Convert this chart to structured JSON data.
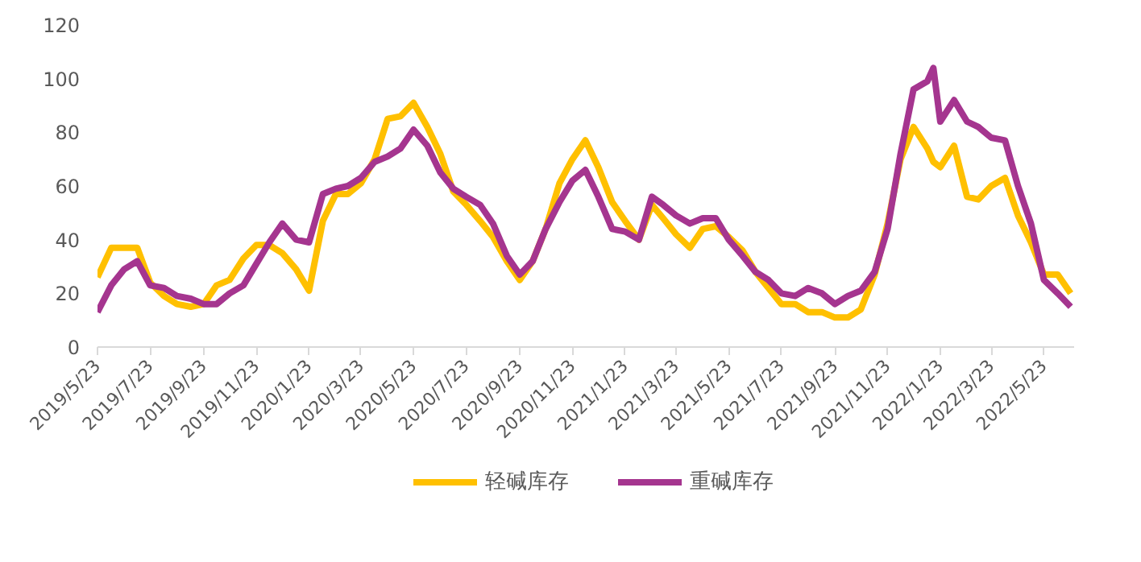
{
  "chart_data": {
    "type": "line",
    "x": [
      "2019-05-23",
      "2019-06-08",
      "2019-06-23",
      "2019-07-08",
      "2019-07-23",
      "2019-08-08",
      "2019-08-23",
      "2019-09-08",
      "2019-09-23",
      "2019-10-08",
      "2019-10-23",
      "2019-11-08",
      "2019-11-23",
      "2019-12-08",
      "2019-12-23",
      "2020-01-08",
      "2020-01-23",
      "2020-02-08",
      "2020-02-23",
      "2020-03-08",
      "2020-03-23",
      "2020-04-08",
      "2020-04-23",
      "2020-05-08",
      "2020-05-23",
      "2020-06-08",
      "2020-06-23",
      "2020-07-08",
      "2020-07-23",
      "2020-08-08",
      "2020-08-23",
      "2020-09-08",
      "2020-09-23",
      "2020-10-08",
      "2020-10-23",
      "2020-11-08",
      "2020-11-23",
      "2020-12-08",
      "2020-12-23",
      "2021-01-08",
      "2021-01-23",
      "2021-02-08",
      "2021-02-23",
      "2021-03-08",
      "2021-03-23",
      "2021-04-08",
      "2021-04-23",
      "2021-05-08",
      "2021-05-23",
      "2021-06-08",
      "2021-06-23",
      "2021-07-08",
      "2021-07-23",
      "2021-08-08",
      "2021-08-23",
      "2021-09-08",
      "2021-09-23",
      "2021-10-08",
      "2021-10-23",
      "2021-11-08",
      "2021-11-23",
      "2021-12-08",
      "2021-12-23",
      "2022-01-08",
      "2022-01-15",
      "2022-01-23",
      "2022-02-08",
      "2022-02-23",
      "2022-03-08",
      "2022-03-23",
      "2022-04-08",
      "2022-04-23",
      "2022-05-08",
      "2022-05-23",
      "2022-06-08",
      "2022-06-23"
    ],
    "series": [
      {
        "name": "轻碱库存",
        "color": "#ffc000",
        "values": [
          26,
          37,
          37,
          37,
          24,
          19,
          16,
          15,
          16,
          23,
          25,
          33,
          38,
          38,
          35,
          29,
          21,
          47,
          57,
          57,
          61,
          70,
          85,
          86,
          91,
          82,
          72,
          58,
          53,
          47,
          41,
          32,
          25,
          32,
          44,
          61,
          70,
          77,
          67,
          54,
          47,
          40,
          53,
          48,
          42,
          37,
          44,
          45,
          41,
          36,
          28,
          22,
          16,
          16,
          13,
          13,
          11,
          11,
          14,
          27,
          46,
          70,
          82,
          74,
          69,
          67,
          75,
          56,
          55,
          60,
          63,
          49,
          39,
          27,
          27,
          20
        ]
      },
      {
        "name": "重碱库存",
        "color": "#a5358f",
        "values": [
          13,
          23,
          29,
          32,
          23,
          22,
          19,
          18,
          16,
          16,
          20,
          23,
          31,
          39,
          46,
          40,
          39,
          57,
          59,
          60,
          63,
          69,
          71,
          74,
          81,
          75,
          65,
          59,
          56,
          53,
          46,
          34,
          27,
          32,
          44,
          54,
          62,
          66,
          56,
          44,
          43,
          40,
          56,
          53,
          49,
          46,
          48,
          48,
          40,
          34,
          28,
          25,
          20,
          19,
          22,
          20,
          16,
          19,
          21,
          28,
          44,
          72,
          96,
          99,
          104,
          84,
          92,
          84,
          82,
          78,
          77,
          60,
          46,
          25,
          20,
          15
        ]
      }
    ],
    "xlim": [
      "2019-05-23",
      "2022-06-27"
    ],
    "xticks": [
      {
        "value": "2019-05-23",
        "label": "2019/5/23"
      },
      {
        "value": "2019-07-23",
        "label": "2019/7/23"
      },
      {
        "value": "2019-09-23",
        "label": "2019/9/23"
      },
      {
        "value": "2019-11-23",
        "label": "2019/11/23"
      },
      {
        "value": "2020-01-23",
        "label": "2020/1/23"
      },
      {
        "value": "2020-03-23",
        "label": "2020/3/23"
      },
      {
        "value": "2020-05-23",
        "label": "2020/5/23"
      },
      {
        "value": "2020-07-23",
        "label": "2020/7/23"
      },
      {
        "value": "2020-09-23",
        "label": "2020/9/23"
      },
      {
        "value": "2020-11-23",
        "label": "2020/11/23"
      },
      {
        "value": "2021-01-23",
        "label": "2021/1/23"
      },
      {
        "value": "2021-03-23",
        "label": "2021/3/23"
      },
      {
        "value": "2021-05-23",
        "label": "2021/5/23"
      },
      {
        "value": "2021-07-23",
        "label": "2021/7/23"
      },
      {
        "value": "2021-09-23",
        "label": "2021/9/23"
      },
      {
        "value": "2021-11-23",
        "label": "2021/11/23"
      },
      {
        "value": "2022-01-23",
        "label": "2022/1/23"
      },
      {
        "value": "2022-03-23",
        "label": "2022/3/23"
      },
      {
        "value": "2022-05-23",
        "label": "2022/5/23"
      }
    ],
    "ylim": [
      0,
      120
    ],
    "yticks": [
      0,
      20,
      40,
      60,
      80,
      100,
      120
    ],
    "grid": false,
    "legend": "bottom",
    "line_style": "solid"
  }
}
